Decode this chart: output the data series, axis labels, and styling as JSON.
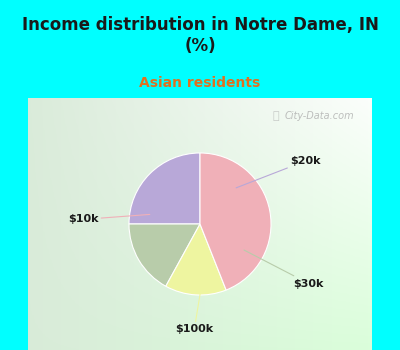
{
  "title": "Income distribution in Notre Dame, IN\n(%)",
  "subtitle": "Asian residents",
  "title_color": "#1a1a1a",
  "subtitle_color": "#e07020",
  "background_color": "#00ffff",
  "labels": [
    "$20k",
    "$30k",
    "$100k",
    "$10k"
  ],
  "sizes": [
    25,
    17,
    14,
    44
  ],
  "colors": [
    "#b8a8d8",
    "#b8ccaa",
    "#eef5a0",
    "#f0b0b8"
  ],
  "startangle": 90,
  "watermark": "City-Data.com",
  "line_colors": [
    "#b8a8d8",
    "#b8ccaa",
    "#eef5a0",
    "#f0b0b8"
  ]
}
